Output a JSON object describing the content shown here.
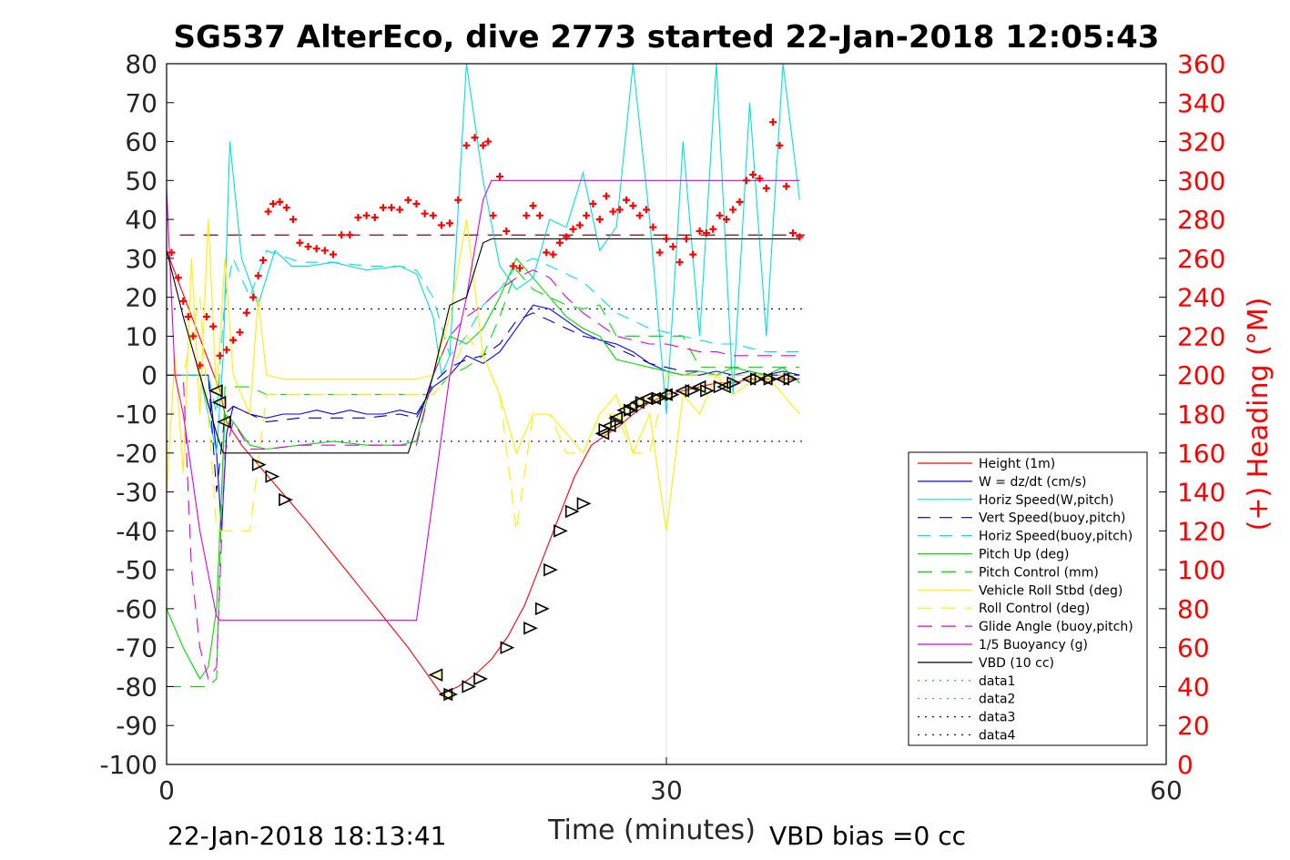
{
  "chart_data": {
    "type": "line",
    "title": "SG537 AlterEco, dive 2773 started 22-Jan-2018 12:05:43",
    "xlabel": "Time (minutes)",
    "ylabel": "",
    "y2label": "(+) Heading (°M)",
    "xlim": [
      0,
      60
    ],
    "ylim": [
      -100,
      80
    ],
    "y2lim": [
      0,
      360
    ],
    "xticks": [
      "0",
      "30",
      "60"
    ],
    "yticks": [
      "80",
      "70",
      "60",
      "50",
      "40",
      "30",
      "20",
      "10",
      "0",
      "-10",
      "-20",
      "-30",
      "-40",
      "-50",
      "-60",
      "-70",
      "-80",
      "-90",
      "-100"
    ],
    "y2ticks": [
      "360",
      "340",
      "320",
      "300",
      "280",
      "260",
      "240",
      "220",
      "200",
      "180",
      "160",
      "140",
      "120",
      "100",
      "80",
      "60",
      "40",
      "20",
      "0"
    ],
    "footer_left": "22-Jan-2018 18:13:41",
    "footer_right": "VBD bias =0 cc",
    "legend_position": "lower-right",
    "colors": {
      "height": "#ff0000",
      "w": "#0000ff",
      "horiz_w": "#00e0e0",
      "vert_buoy": "#0000c0",
      "horiz_buoy": "#00e0e0",
      "pitch": "#00dd00",
      "pitch_ctl": "#00dd00",
      "roll": "#ffee00",
      "roll_ctl": "#ffee00",
      "glide": "#dd00dd",
      "buoy": "#dd00dd",
      "vbd": "#000000",
      "heading": "#ff0000",
      "ref": "#0000ff"
    },
    "series": [
      {
        "name": "Height (1m)",
        "color": "#ff0000",
        "dash": "",
        "x": [
          0,
          3.2,
          3.6,
          4.5,
          5.5,
          6.5,
          7.5,
          8.5,
          10,
          11.5,
          13,
          14.5,
          15.5,
          16.5,
          17.5,
          18.5,
          19.5,
          20.5,
          21.5,
          22.5,
          23.5,
          24.5,
          25.5,
          26.5,
          27.2,
          28,
          29,
          30,
          31,
          32,
          33,
          34,
          35,
          36,
          37,
          38
        ],
        "y": [
          32,
          -4,
          -12,
          -18,
          -23,
          -28,
          -33,
          -38,
          -46,
          -54,
          -62,
          -70,
          -76,
          -82,
          -80,
          -77,
          -73,
          -67,
          -59,
          -48,
          -37,
          -26,
          -18,
          -15,
          -13,
          -10,
          -7,
          -5,
          -4,
          -3,
          -2,
          -2,
          -1,
          -1,
          -1,
          -1
        ]
      },
      {
        "name": "W = dz/dt (cm/s)",
        "color": "#0000ff",
        "dash": "",
        "x": [
          0,
          2.5,
          3,
          3.3,
          3.6,
          4,
          5,
          6,
          7,
          8,
          9,
          10,
          11,
          12,
          13,
          14,
          15,
          16,
          17,
          18,
          19,
          20,
          21,
          22,
          23,
          24,
          25,
          26,
          27,
          28,
          29,
          30,
          31,
          32,
          33,
          34,
          35,
          36,
          37,
          38
        ],
        "y": [
          0,
          0,
          -20,
          -40,
          -15,
          -8,
          -10,
          -11,
          -10,
          -10,
          -9,
          -10,
          -9,
          -10,
          -10,
          -9,
          -10,
          -3,
          0,
          5,
          3,
          6,
          12,
          18,
          17,
          14,
          11,
          9,
          8,
          6,
          3,
          1,
          0,
          0,
          1,
          0,
          1,
          0,
          1,
          0
        ]
      },
      {
        "name": "Horiz Speed(W,pitch)",
        "color": "#00e0e0",
        "dash": "",
        "x": [
          0,
          1,
          2,
          3,
          3.4,
          3.8,
          4.5,
          5.5,
          6.5,
          7.5,
          8.5,
          10,
          12,
          14,
          15,
          16,
          16.5,
          17,
          18,
          19,
          20,
          21,
          22,
          23,
          24,
          25,
          26,
          27,
          28,
          29,
          30,
          31,
          32,
          33,
          34,
          35,
          36,
          37,
          38
        ],
        "y": [
          0,
          0,
          0,
          -20,
          5,
          60,
          30,
          18,
          32,
          28,
          28,
          29,
          27,
          28,
          26,
          15,
          0,
          5,
          80,
          50,
          28,
          22,
          25,
          40,
          38,
          52,
          32,
          38,
          80,
          40,
          -10,
          60,
          10,
          80,
          -5,
          70,
          10,
          80,
          45
        ]
      },
      {
        "name": "Vert Speed(buoy,pitch)",
        "color": "#0000c0",
        "dash": "14,10",
        "x": [
          0,
          2.5,
          3,
          3.5,
          4,
          6,
          8,
          10,
          12,
          14,
          15,
          16,
          17,
          18,
          19,
          20,
          21,
          22,
          23,
          24,
          25,
          26,
          27,
          28,
          29,
          30,
          31,
          32,
          33,
          34,
          35,
          36,
          37,
          38
        ],
        "y": [
          0,
          0,
          -30,
          -10,
          -8,
          -12,
          -11,
          -11,
          -11,
          -10,
          -11,
          -2,
          2,
          4,
          5,
          8,
          14,
          16,
          14,
          12,
          10,
          9,
          7,
          5,
          3,
          2,
          1,
          1,
          0,
          0,
          0,
          0,
          0,
          0
        ]
      },
      {
        "name": "Horiz Speed(buoy,pitch)",
        "color": "#00e0e0",
        "dash": "14,10",
        "x": [
          0,
          2.5,
          3,
          3.5,
          4,
          5,
          6,
          8,
          10,
          12,
          14,
          15,
          16,
          17,
          18,
          19,
          20,
          21,
          22,
          23,
          24,
          25,
          26,
          27,
          28,
          29,
          30,
          31,
          32,
          33,
          34,
          35,
          36,
          37,
          38
        ],
        "y": [
          0,
          0,
          -10,
          20,
          30,
          20,
          32,
          29,
          29,
          28,
          28,
          27,
          20,
          5,
          10,
          18,
          22,
          28,
          30,
          28,
          26,
          24,
          20,
          16,
          14,
          12,
          11,
          10,
          9,
          8,
          8,
          7,
          6,
          6,
          6
        ]
      },
      {
        "name": "Pitch Up (deg)",
        "color": "#00dd00",
        "dash": "",
        "x": [
          0,
          1,
          2,
          2.5,
          3,
          3.5,
          4,
          5,
          6,
          8,
          10,
          12,
          14,
          15,
          16,
          17,
          18,
          19,
          20,
          21,
          22,
          23,
          24,
          25,
          26,
          27,
          28,
          29,
          30,
          31,
          32,
          33,
          34,
          35,
          36,
          37,
          38
        ],
        "y": [
          -60,
          -70,
          -78,
          -75,
          -60,
          -10,
          -12,
          -18,
          -19,
          -18,
          -17,
          -18,
          -18,
          -17,
          0,
          10,
          8,
          12,
          20,
          30,
          25,
          20,
          15,
          12,
          10,
          4,
          3,
          2,
          1,
          0,
          1,
          0,
          2,
          1,
          0,
          2,
          -2
        ]
      },
      {
        "name": "Pitch Control (mm)",
        "color": "#00dd00",
        "dash": "16,10",
        "x": [
          0,
          2.5,
          3,
          3.5,
          4,
          5,
          6,
          8,
          10,
          12,
          14,
          15,
          16,
          17,
          18,
          19,
          20,
          21,
          22,
          23,
          24,
          25,
          26,
          27,
          28,
          29,
          30,
          31,
          32,
          33,
          34,
          35,
          36,
          37,
          38
        ],
        "y": [
          -80,
          -80,
          -78,
          -3,
          -3,
          -3,
          -5,
          -5,
          -5,
          -5,
          -5,
          -5,
          -5,
          0,
          2,
          5,
          15,
          27,
          22,
          20,
          18,
          17,
          18,
          10,
          10,
          10,
          10,
          10,
          2,
          2,
          2,
          2,
          2,
          2,
          2
        ]
      },
      {
        "name": "Vehicle Roll Stbd (deg)",
        "color": "#ffee00",
        "dash": "",
        "x": [
          0,
          0.5,
          1,
          1.5,
          2,
          2.5,
          3,
          3.5,
          4,
          5,
          5.5,
          6,
          7,
          8,
          10,
          12,
          14,
          15,
          16,
          17,
          18,
          19,
          20,
          21,
          22,
          23,
          24,
          25,
          26,
          27,
          28,
          29,
          30,
          31,
          32,
          33,
          34,
          35,
          36,
          37,
          38
        ],
        "y": [
          -30,
          5,
          -25,
          30,
          -10,
          40,
          -5,
          30,
          0,
          -10,
          20,
          0,
          -1,
          -1,
          -1,
          -1,
          -1,
          -1,
          0,
          15,
          40,
          5,
          -5,
          -20,
          -10,
          -10,
          -15,
          -20,
          -10,
          -5,
          -20,
          -10,
          -40,
          -5,
          -10,
          0,
          -5,
          -2,
          0,
          -5,
          -10
        ]
      },
      {
        "name": "Roll Control (deg)",
        "color": "#ffee00",
        "dash": "16,10",
        "x": [
          0,
          1,
          2,
          3,
          4,
          5,
          6,
          8,
          10,
          12,
          14,
          16,
          17,
          18,
          19,
          20,
          21,
          22,
          23,
          24,
          25,
          26,
          27,
          28,
          29,
          30,
          31,
          32,
          33,
          34,
          35,
          36,
          37,
          38
        ],
        "y": [
          0,
          0,
          20,
          -40,
          -40,
          -40,
          -5,
          -5,
          -5,
          -5,
          -5,
          -5,
          0,
          10,
          5,
          -5,
          -40,
          -10,
          -10,
          -20,
          -20,
          -10,
          -10,
          -20,
          -20,
          0,
          0,
          0,
          0,
          0,
          0,
          0,
          0,
          0
        ]
      },
      {
        "name": "Glide Angle (buoy,pitch)",
        "color": "#dd00dd",
        "dash": "16,10",
        "x": [
          0,
          1,
          1.5,
          2,
          2.5,
          3,
          3.5,
          4,
          5,
          6,
          8,
          10,
          12,
          14,
          15,
          16,
          17,
          18,
          19,
          20,
          21,
          22,
          23,
          24,
          25,
          26,
          27,
          28,
          29,
          30,
          31,
          32,
          33,
          34,
          35,
          36,
          37,
          38
        ],
        "y": [
          0,
          0,
          -50,
          -70,
          -78,
          -75,
          -20,
          -12,
          -19,
          -19,
          -18,
          -18,
          -18,
          -18,
          -18,
          0,
          10,
          15,
          18,
          22,
          25,
          27,
          25,
          20,
          16,
          13,
          10,
          9,
          8,
          8,
          7,
          6,
          6,
          5,
          5,
          5,
          5,
          5
        ]
      },
      {
        "name": "1/5 Buoyancy (g)",
        "color": "#dd00dd",
        "dash": "",
        "x": [
          0,
          0.5,
          1,
          2,
          3,
          3.2,
          5,
          8,
          10,
          12,
          14,
          15,
          17,
          18,
          19,
          19.5,
          20,
          22,
          24,
          25,
          26,
          27,
          28,
          30,
          32,
          34,
          36,
          38
        ],
        "y": [
          48,
          0,
          -10,
          -40,
          -62,
          -63,
          -63,
          -63,
          -63,
          -63,
          -63,
          -63,
          0,
          20,
          45,
          50,
          50,
          50,
          50,
          50,
          50,
          50,
          50,
          50,
          50,
          50,
          50,
          50
        ]
      },
      {
        "name": "VBD (10 cc)",
        "color": "#000000",
        "dash": "",
        "x": [
          0,
          1,
          2,
          3,
          3.4,
          4,
          6,
          8,
          10,
          12,
          14,
          14.5,
          16,
          17,
          18,
          19,
          19.5,
          20,
          22,
          24,
          26,
          28,
          30,
          32,
          34,
          36,
          38
        ],
        "y": [
          32,
          15,
          0,
          -15,
          -20,
          -20,
          -20,
          -20,
          -20,
          -20,
          -20,
          -20,
          0,
          18,
          20,
          34,
          35,
          35,
          35,
          35,
          35,
          35,
          35,
          35,
          35,
          35,
          35
        ]
      },
      {
        "name": "data1",
        "color": "#00cc00",
        "dash": "2,6",
        "x": [],
        "y": []
      },
      {
        "name": "data2",
        "color": "#00cc00",
        "dash": "2,6",
        "x": [],
        "y": []
      },
      {
        "name": "data3",
        "color": "#0000cc",
        "dash": "2,6",
        "x": [],
        "y": []
      },
      {
        "name": "data4",
        "color": "#0000cc",
        "dash": "2,6",
        "x": [],
        "y": []
      }
    ],
    "reference_lines": [
      {
        "y": 36,
        "x0": 0.8,
        "x1": 38.3,
        "color": "#8b0000",
        "dash": "16,10"
      },
      {
        "y": 17,
        "x0": 0,
        "x1": 38.3,
        "color": "#0000aa",
        "dash": "2,6"
      },
      {
        "y": -17,
        "x0": 0,
        "x1": 38.3,
        "color": "#0000aa",
        "dash": "2,6"
      }
    ],
    "heading": {
      "x": [
        0.3,
        0.7,
        1,
        1.3,
        1.6,
        2,
        2.4,
        2.8,
        3.2,
        3.6,
        4,
        4.4,
        4.8,
        5.2,
        5.5,
        5.8,
        6.1,
        6.4,
        6.8,
        7.2,
        7.6,
        8,
        8.5,
        9,
        9.5,
        10,
        10.5,
        11,
        11.5,
        12,
        12.5,
        13,
        13.5,
        14,
        14.5,
        15,
        15.5,
        16,
        16.5,
        17,
        17.5,
        18,
        18.5,
        19,
        19.3,
        19.6,
        20,
        20.4,
        20.8,
        21.2,
        21.6,
        22,
        22.4,
        22.8,
        23.2,
        23.6,
        24,
        24.4,
        24.8,
        25.2,
        25.6,
        26,
        26.4,
        26.8,
        27.2,
        27.6,
        28,
        28.4,
        28.8,
        29.2,
        29.6,
        30,
        30.4,
        30.8,
        31.2,
        31.6,
        32,
        32.4,
        32.8,
        33.2,
        33.6,
        34,
        34.4,
        34.8,
        35.2,
        35.6,
        36,
        36.4,
        36.8,
        37.2,
        37.6,
        38
      ],
      "y": [
        263,
        250,
        238,
        230,
        220,
        205,
        230,
        225,
        210,
        213,
        218,
        222,
        232,
        240,
        251,
        259,
        284,
        288,
        289,
        286,
        280,
        268,
        266,
        265,
        264,
        262,
        272,
        272,
        281,
        282,
        281,
        286,
        286,
        285,
        290,
        288,
        283,
        282,
        277,
        278,
        290,
        318,
        322,
        318,
        320,
        282,
        302,
        274,
        256,
        255,
        282,
        287,
        282,
        263,
        262,
        268,
        271,
        275,
        277,
        282,
        288,
        280,
        292,
        284,
        285,
        290,
        287,
        282,
        285,
        276,
        263,
        270,
        266,
        258,
        270,
        262,
        274,
        273,
        275,
        282,
        280,
        285,
        289,
        300,
        303,
        301,
        296,
        330,
        318,
        297,
        273,
        271
      ]
    },
    "markers_left": {
      "x": [
        3.0,
        3.2,
        3.5,
        16.2,
        16.8,
        26.2,
        26.6,
        27.0,
        27.5,
        27.9,
        28.3,
        28.8,
        29.3,
        30.0,
        31.0,
        32.0,
        33.5,
        35.0,
        36.0,
        37.0
      ],
      "y": [
        -4,
        -7,
        -12,
        -77,
        -82,
        -15,
        -13,
        -11,
        -9,
        -8,
        -7,
        -6,
        -6,
        -5,
        -4,
        -3,
        -3,
        -1,
        -1,
        -1
      ]
    },
    "markers_right": {
      "x": [
        5.5,
        6.3,
        7.1,
        17.0,
        18.1,
        18.8,
        20.4,
        21.8,
        22.5,
        23.0,
        23.6,
        24.3,
        25.0,
        26.3,
        27.0,
        27.8,
        28.5,
        29.5,
        30.3,
        31.5,
        32.4,
        33.2,
        34.0,
        35.4,
        36.2,
        37.4
      ],
      "y": [
        -23,
        -26,
        -32,
        -82,
        -80,
        -78,
        -70,
        -65,
        -60,
        -50,
        -40,
        -35,
        -33,
        -14,
        -12,
        -9,
        -7,
        -6,
        -5,
        -4,
        -4,
        -3,
        -2,
        -1,
        -1,
        -1
      ]
    }
  }
}
